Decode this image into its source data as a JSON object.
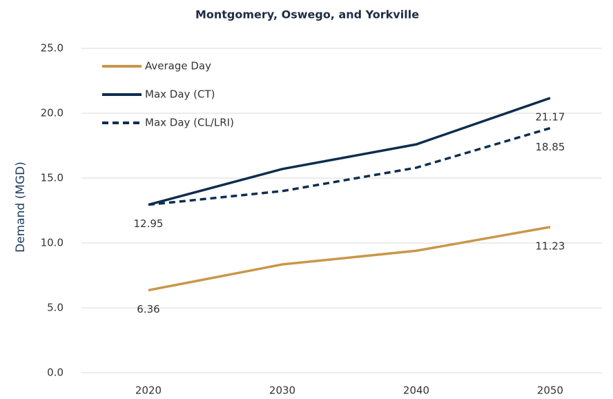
{
  "chart_data": {
    "type": "line",
    "title": "Montgomery, Oswego, and Yorkville",
    "y_label": "Demand (MGD)",
    "categories": [
      "2020",
      "2030",
      "2040",
      "2050"
    ],
    "series": [
      {
        "name": "Average Day",
        "color": "#c9964a",
        "dash": "solid",
        "values": [
          6.36,
          8.35,
          9.4,
          11.23
        ],
        "value_labels": [
          "6.36",
          null,
          null,
          "11.23"
        ]
      },
      {
        "name": "Max Day (CT)",
        "color": "#0e2d4f",
        "dash": "solid",
        "values": [
          12.95,
          15.7,
          17.6,
          21.17
        ],
        "value_labels": [
          "12.95",
          null,
          null,
          "21.17"
        ]
      },
      {
        "name": "Max Day (CL/LRI)",
        "color": "#0e2d4f",
        "dash": "dashed",
        "values": [
          12.95,
          14.0,
          15.8,
          18.85
        ],
        "value_labels": [
          null,
          null,
          null,
          "18.85"
        ]
      }
    ],
    "ylim": [
      0,
      25
    ],
    "yticks": [
      {
        "value": 0,
        "label": "0.0"
      },
      {
        "value": 5,
        "label": "5.0"
      },
      {
        "value": 10,
        "label": "10.0"
      },
      {
        "value": 15,
        "label": "15.0"
      },
      {
        "value": 20,
        "label": "20.0"
      },
      {
        "value": 25,
        "label": "25.0"
      }
    ],
    "grid": true,
    "legend": "top-left"
  }
}
